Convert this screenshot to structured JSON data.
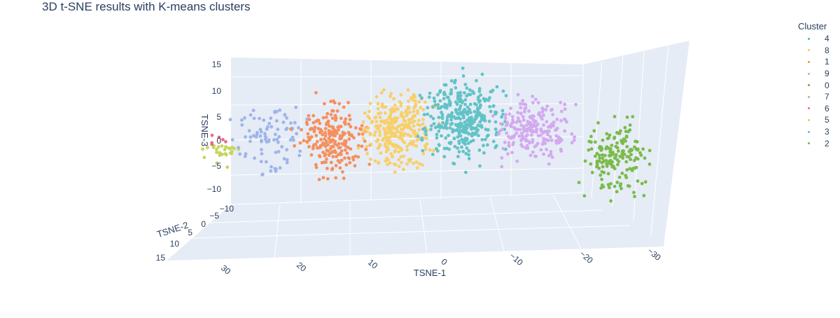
{
  "title": "3D t-SNE results with K-means clusters",
  "legend": {
    "title": "Cluster",
    "items": [
      {
        "label": "4",
        "color": "#56b1a6"
      },
      {
        "label": "8",
        "color": "#f7c95c"
      },
      {
        "label": "1",
        "color": "#f5884d"
      },
      {
        "label": "9",
        "color": "#b9a6e4"
      },
      {
        "label": "0",
        "color": "#8b9b2f"
      },
      {
        "label": "7",
        "color": "#c09bd0"
      },
      {
        "label": "6",
        "color": "#ea6b8d"
      },
      {
        "label": "5",
        "color": "#c8d45e"
      },
      {
        "label": "3",
        "color": "#5fc0c6"
      },
      {
        "label": "2",
        "color": "#7ab648"
      }
    ]
  },
  "chart_data": {
    "type": "scatter",
    "title": "3D t-SNE results with K-means clusters",
    "xlabel": "TSNE-1",
    "ylabel": "TSNE-2",
    "zlabel": "TSNE-3",
    "x_ticks": [
      "30",
      "20",
      "10",
      "0",
      "−10",
      "−20",
      "−30"
    ],
    "y_ticks": [
      "−5",
      "0",
      "5",
      "10",
      "15"
    ],
    "z_ticks": [
      "15",
      "10",
      "5",
      "0",
      "−5",
      "−10",
      "−10"
    ],
    "legend_title": "Cluster",
    "legend_position": "top-right",
    "series": [
      {
        "name": "5",
        "color": "#c5d65f",
        "tsne1": 30,
        "tsne3": -2,
        "spread": [
          2,
          2
        ],
        "n": 28
      },
      {
        "name": "6",
        "color": "#ea6b8d",
        "tsne1": 31,
        "tsne3": 0,
        "spread": [
          1,
          1
        ],
        "n": 6
      },
      {
        "name": "7",
        "color": "#9fb4e8",
        "tsne1": 24,
        "tsne3": 0,
        "spread": [
          4,
          5
        ],
        "n": 90
      },
      {
        "name": "1",
        "color": "#f5905e",
        "tsne1": 15,
        "tsne3": 0,
        "spread": [
          4,
          6
        ],
        "n": 230
      },
      {
        "name": "8",
        "color": "#f8cf6a",
        "tsne1": 6,
        "tsne3": 2,
        "spread": [
          4,
          7
        ],
        "n": 300
      },
      {
        "name": "3",
        "color": "#62c3c6",
        "tsne1": -3,
        "tsne3": 4,
        "spread": [
          5,
          7
        ],
        "n": 360
      },
      {
        "name": "9",
        "color": "#d3a9ef",
        "tsne1": -13,
        "tsne3": 2,
        "spread": [
          5,
          5
        ],
        "n": 220
      },
      {
        "name": "2",
        "color": "#7bbb4a",
        "tsne1": -24,
        "tsne3": -3,
        "spread": [
          4,
          6
        ],
        "n": 170
      }
    ]
  }
}
